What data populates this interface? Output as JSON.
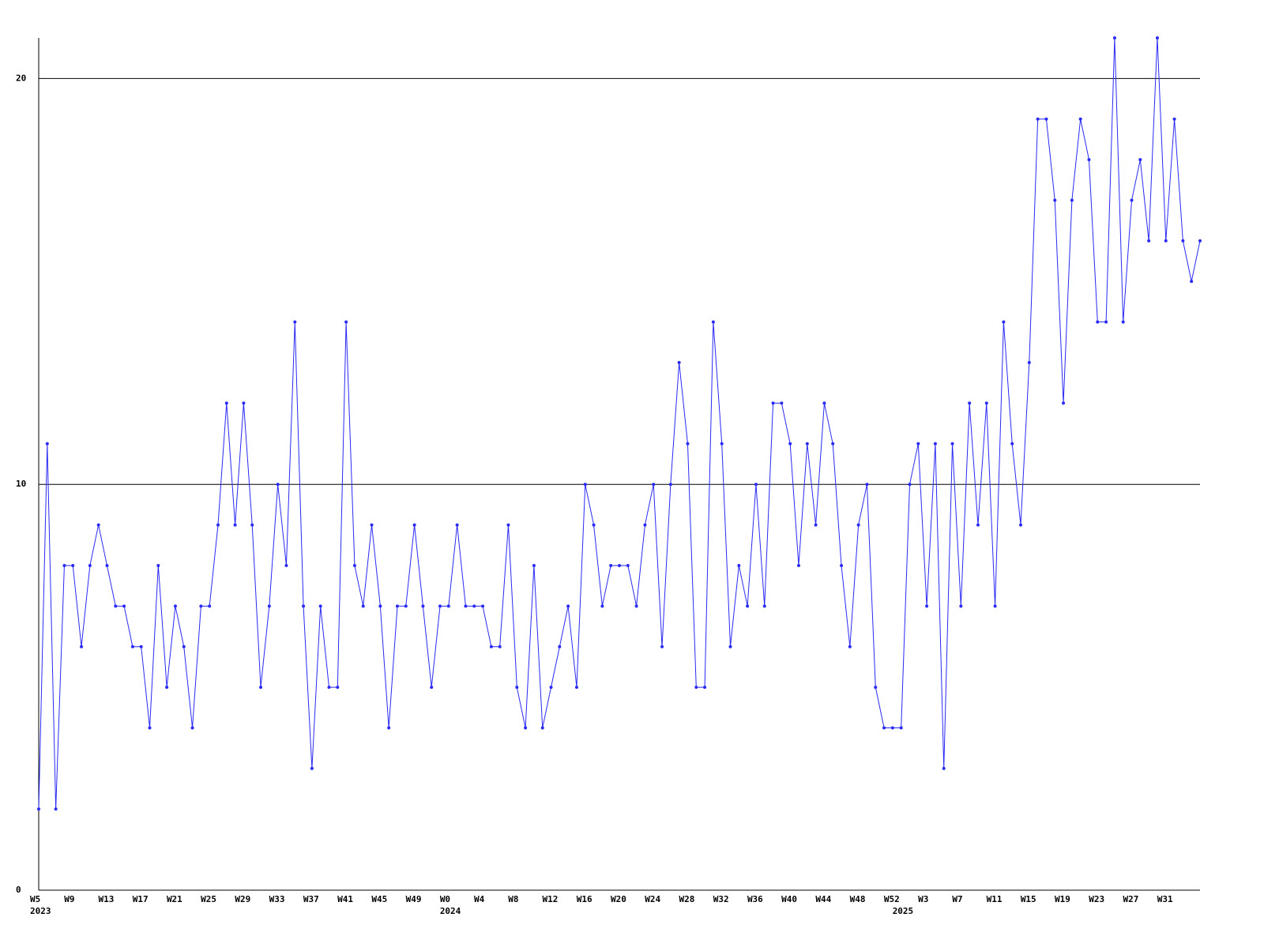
{
  "chart_data": {
    "type": "line",
    "categories": [
      "W5",
      null,
      null,
      null,
      "W9",
      null,
      null,
      null,
      "W13",
      null,
      null,
      null,
      "W17",
      null,
      null,
      null,
      "W21",
      null,
      null,
      null,
      "W25",
      null,
      null,
      null,
      "W29",
      null,
      null,
      null,
      "W33",
      null,
      null,
      null,
      "W37",
      null,
      null,
      null,
      "W41",
      null,
      null,
      null,
      "W45",
      null,
      null,
      null,
      "W49",
      null,
      null,
      null,
      "W0",
      null,
      null,
      null,
      "W4",
      null,
      null,
      null,
      "W8",
      null,
      null,
      null,
      "W12",
      null,
      null,
      null,
      "W16",
      null,
      null,
      null,
      "W20",
      null,
      null,
      null,
      "W24",
      null,
      null,
      null,
      "W28",
      null,
      null,
      null,
      "W32",
      null,
      null,
      null,
      "W36",
      null,
      null,
      null,
      "W40",
      null,
      null,
      null,
      "W44",
      null,
      null,
      null,
      "W48",
      null,
      null,
      null,
      "W52",
      null,
      null,
      null,
      "W3",
      null,
      null,
      null,
      "W7",
      null,
      null,
      null,
      "W11",
      null,
      null,
      null,
      "W15",
      null,
      null,
      null,
      "W19",
      null,
      null,
      null,
      "W23",
      null,
      null,
      null,
      "W27",
      null,
      null,
      null,
      "W31",
      null,
      null,
      null,
      null
    ],
    "category_years": [
      "2023",
      null,
      null,
      null,
      null,
      null,
      null,
      null,
      null,
      null,
      null,
      null,
      null,
      null,
      null,
      null,
      null,
      null,
      null,
      null,
      null,
      null,
      null,
      null,
      null,
      null,
      null,
      null,
      null,
      null,
      null,
      null,
      null,
      null,
      null,
      null,
      null,
      null,
      null,
      null,
      null,
      null,
      null,
      null,
      null,
      null,
      null,
      null,
      "2024",
      null,
      null,
      null,
      null,
      null,
      null,
      null,
      null,
      null,
      null,
      null,
      null,
      null,
      null,
      null,
      null,
      null,
      null,
      null,
      null,
      null,
      null,
      null,
      null,
      null,
      null,
      null,
      null,
      null,
      null,
      null,
      null,
      null,
      null,
      null,
      null,
      null,
      null,
      null,
      null,
      null,
      null,
      null,
      null,
      null,
      null,
      null,
      null,
      null,
      null,
      null,
      null,
      "2025",
      null,
      null,
      null,
      null,
      null,
      null,
      null,
      null,
      null,
      null,
      null,
      null,
      null,
      null,
      null,
      null,
      null,
      null,
      null,
      null,
      null,
      null,
      null,
      null,
      null,
      null,
      null,
      null,
      null,
      null,
      null,
      null,
      null,
      null,
      null
    ],
    "series": [
      {
        "color": "#2a2af5",
        "values": [
          2,
          11,
          2,
          8,
          8,
          6,
          8,
          9,
          8,
          7,
          7,
          6,
          6,
          4,
          8,
          5,
          7,
          6,
          4,
          7,
          7,
          9,
          12,
          9,
          12,
          9,
          5,
          7,
          10,
          8,
          14,
          7,
          3,
          7,
          5,
          5,
          14,
          8,
          7,
          9,
          7,
          4,
          7,
          7,
          9,
          7,
          5,
          7,
          7,
          9,
          7,
          7,
          7,
          6,
          6,
          9,
          5,
          4,
          8,
          4,
          5,
          6,
          7,
          5,
          10,
          9,
          7,
          8,
          8,
          8,
          7,
          9,
          10,
          6,
          10,
          13,
          11,
          5,
          5,
          14,
          11,
          6,
          8,
          7,
          10,
          7,
          12,
          12,
          11,
          8,
          11,
          9,
          12,
          11,
          8,
          6,
          9,
          10,
          5,
          4,
          4,
          4,
          10,
          11,
          7,
          11,
          3,
          11,
          7,
          12,
          9,
          12,
          7,
          14,
          11,
          9,
          13,
          19,
          19,
          17,
          12,
          17,
          19,
          18,
          14,
          14,
          21,
          14,
          17,
          18,
          16,
          21,
          16,
          19,
          16,
          15,
          16
        ]
      }
    ],
    "ylim": [
      0,
      21
    ],
    "yticks": [
      0,
      10,
      20
    ],
    "grid": true
  }
}
